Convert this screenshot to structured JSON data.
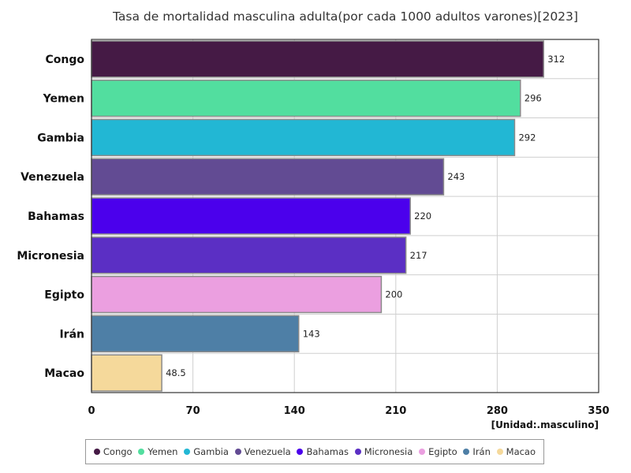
{
  "chart_data": {
    "type": "bar",
    "orientation": "horizontal",
    "title": "Tasa de mortalidad masculina adulta(por cada 1000 adultos varones)[2023]",
    "unit_label": "[Unidad:.masculino]",
    "categories": [
      "Congo",
      "Yemen",
      "Gambia",
      "Venezuela",
      "Bahamas",
      "Micronesia",
      "Egipto",
      "Irán",
      "Macao"
    ],
    "values": [
      312,
      296,
      292,
      243,
      220,
      217,
      200,
      143,
      48.5
    ],
    "value_labels": [
      "312",
      "296",
      "292",
      "243",
      "220",
      "217",
      "200",
      "143",
      "48.5"
    ],
    "colors": [
      "#451a45",
      "#52de9f",
      "#22b7d4",
      "#624b93",
      "#4b00ec",
      "#5b2fc4",
      "#eb9fe0",
      "#4e7fa6",
      "#f5d99b"
    ],
    "xlim": [
      0,
      350
    ],
    "xticks": [
      0,
      70,
      140,
      210,
      280,
      350
    ],
    "grid": true,
    "legend_position": "bottom"
  }
}
